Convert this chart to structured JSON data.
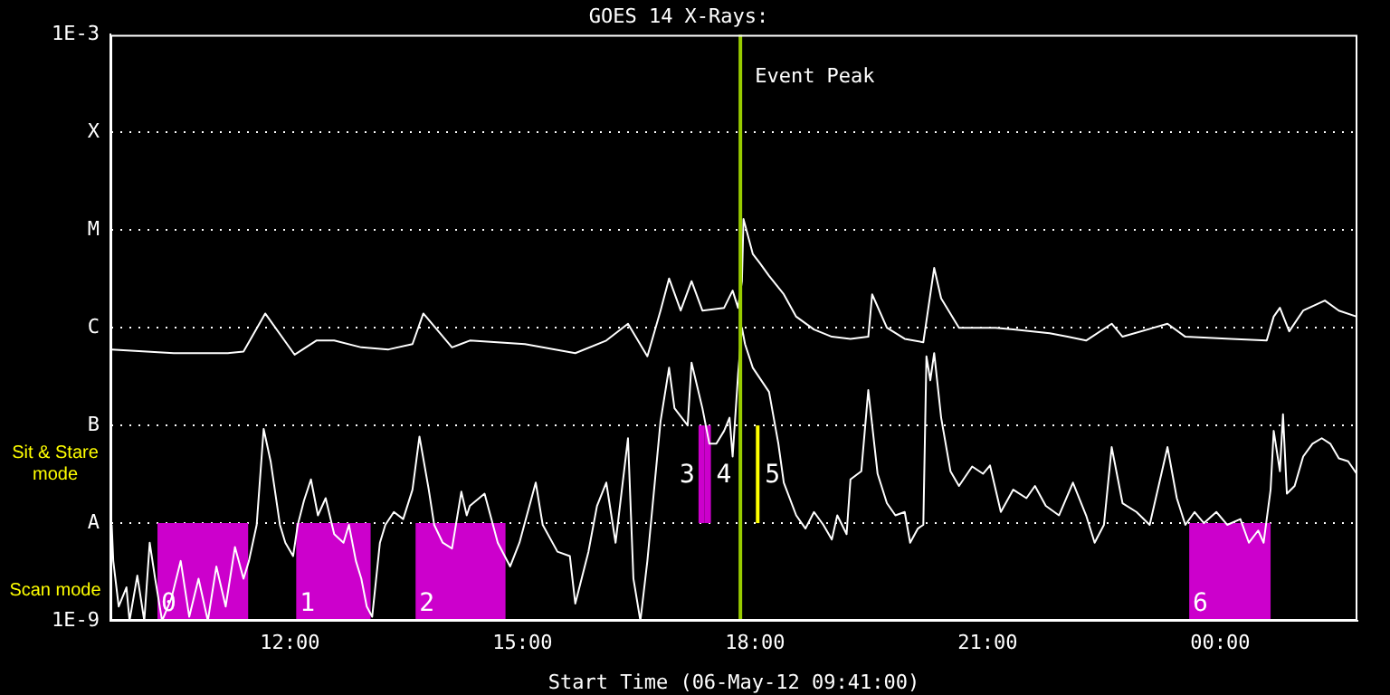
{
  "chart_data": {
    "type": "line",
    "title": "GOES 14 X-Rays:",
    "xlabel": "Start Time (06-May-12 09:41:00)",
    "xlim": [
      9.683,
      25.77
    ],
    "xticks": [
      {
        "value": 12,
        "label": "12:00"
      },
      {
        "value": 15,
        "label": "15:00"
      },
      {
        "value": 18,
        "label": "18:00"
      },
      {
        "value": 21,
        "label": "21:00"
      },
      {
        "value": 24,
        "label": "00:00"
      }
    ],
    "ylim": [
      1e-09,
      0.001
    ],
    "log": true,
    "yticks": [
      {
        "value": 1e-09,
        "label": "1E-9"
      },
      {
        "value": 1e-08,
        "label": "A"
      },
      {
        "value": 1e-07,
        "label": "B"
      },
      {
        "value": 1e-06,
        "label": "C"
      },
      {
        "value": 1e-05,
        "label": "M"
      },
      {
        "value": 0.0001,
        "label": "X"
      },
      {
        "value": 0.001,
        "label": "1E-3"
      }
    ],
    "grid": "y",
    "legend": false,
    "series": [
      {
        "color": "#ffffff",
        "x": [
          9.7,
          10.5,
          11.2,
          11.4,
          11.68,
          12.06,
          12.34,
          12.57,
          12.92,
          13.27,
          13.58,
          13.72,
          14.09,
          14.32,
          15.03,
          15.68,
          16.08,
          16.36,
          16.61,
          16.78,
          16.89,
          17.04,
          17.18,
          17.32,
          17.6,
          17.71,
          17.78,
          17.83,
          17.85,
          17.97,
          18.06,
          18.18,
          18.37,
          18.53,
          18.76,
          18.99,
          19.23,
          19.46,
          19.51,
          19.7,
          19.93,
          20.17,
          20.31,
          20.4,
          20.63,
          20.87,
          21.1,
          21.33,
          21.8,
          22.03,
          22.27,
          22.6,
          22.74,
          23.32,
          23.55,
          24.14,
          24.6,
          24.69,
          24.77,
          24.89,
          25.07,
          25.35,
          25.53,
          25.76
        ],
        "values": [
          6e-07,
          5.5e-07,
          5.5e-07,
          5.7e-07,
          1.4e-06,
          5.3e-07,
          7.4e-07,
          7.4e-07,
          6.3e-07,
          6e-07,
          6.8e-07,
          1.4e-06,
          6.3e-07,
          7.4e-07,
          6.8e-07,
          5.5e-07,
          7.4e-07,
          1.1e-06,
          5.1e-07,
          1.5e-06,
          3.2e-06,
          1.5e-06,
          3e-06,
          1.5e-06,
          1.6e-06,
          2.4e-06,
          1.6e-06,
          3e-06,
          1.3e-05,
          5.7e-06,
          4.6e-06,
          3.4e-06,
          2.2e-06,
          1.3e-06,
          9.6e-07,
          8.1e-07,
          7.7e-07,
          8.1e-07,
          2.2e-06,
          1e-06,
          7.7e-07,
          7.1e-07,
          4.1e-06,
          2e-06,
          1e-06,
          1e-06,
          1e-06,
          9.6e-07,
          8.8e-07,
          8.1e-07,
          7.4e-07,
          1.1e-06,
          8.1e-07,
          1.1e-06,
          8.1e-07,
          7.7e-07,
          7.4e-07,
          1.3e-06,
          1.6e-06,
          9.2e-07,
          1.5e-06,
          1.9e-06,
          1.5e-06,
          1.3e-06
        ]
      },
      {
        "color": "#ffffff",
        "x": [
          9.7,
          9.72,
          9.79,
          9.89,
          9.93,
          10.03,
          10.12,
          10.19,
          10.26,
          10.35,
          10.47,
          10.59,
          10.7,
          10.82,
          10.94,
          11.05,
          11.17,
          11.29,
          11.4,
          11.47,
          11.57,
          11.66,
          11.75,
          11.87,
          11.94,
          12.04,
          12.1,
          12.18,
          12.27,
          12.36,
          12.46,
          12.57,
          12.69,
          12.76,
          12.85,
          12.92,
          12.99,
          13.06,
          13.16,
          13.23,
          13.34,
          13.46,
          13.58,
          13.67,
          13.79,
          13.86,
          13.97,
          14.09,
          14.21,
          14.28,
          14.32,
          14.51,
          14.68,
          14.84,
          14.96,
          15.17,
          15.26,
          15.45,
          15.61,
          15.68,
          15.85,
          15.96,
          16.08,
          16.2,
          16.36,
          16.43,
          16.52,
          16.61,
          16.78,
          16.89,
          16.96,
          17.13,
          17.18,
          17.32,
          17.41,
          17.5,
          17.6,
          17.67,
          17.71,
          17.78,
          17.83,
          17.87,
          17.97,
          18.18,
          18.3,
          18.37,
          18.53,
          18.65,
          18.76,
          18.88,
          18.99,
          19.06,
          19.18,
          19.23,
          19.37,
          19.46,
          19.58,
          19.7,
          19.81,
          19.93,
          20.0,
          20.1,
          20.17,
          20.21,
          20.26,
          20.31,
          20.4,
          20.52,
          20.63,
          20.8,
          20.94,
          21.03,
          21.17,
          21.33,
          21.5,
          21.61,
          21.75,
          21.92,
          22.1,
          22.27,
          22.38,
          22.5,
          22.6,
          22.74,
          22.92,
          23.09,
          23.32,
          23.44,
          23.55,
          23.67,
          23.79,
          23.95,
          24.09,
          24.26,
          24.37,
          24.49,
          24.56,
          24.65,
          24.69,
          24.77,
          24.81,
          24.86,
          24.96,
          25.07,
          25.19,
          25.31,
          25.42,
          25.53,
          25.65,
          25.76
        ],
        "values": [
          9.6e-09,
          4.1e-09,
          1.4e-09,
          2.2e-09,
          1e-09,
          2.9e-09,
          1e-09,
          6.3e-09,
          2.7e-09,
          1e-09,
          1.7e-09,
          4.1e-09,
          1.1e-09,
          2.7e-09,
          1e-09,
          3.6e-09,
          1.4e-09,
          5.7e-09,
          2.7e-09,
          4.1e-09,
          9.6e-09,
          9.2e-08,
          4.3e-08,
          9.6e-09,
          6.3e-09,
          4.6e-09,
          9.6e-09,
          1.7e-08,
          2.8e-08,
          1.2e-08,
          1.8e-08,
          7.7e-09,
          6.3e-09,
          9.6e-09,
          4.1e-09,
          2.7e-09,
          1.4e-09,
          1.1e-09,
          6.3e-09,
          9.6e-09,
          1.3e-08,
          1.1e-08,
          2.2e-08,
          7.7e-08,
          2.2e-08,
          9.6e-09,
          6.3e-09,
          5.5e-09,
          2.1e-08,
          1.2e-08,
          1.5e-08,
          2e-08,
          6.3e-09,
          3.6e-09,
          6.3e-09,
          2.6e-08,
          9.6e-09,
          5.1e-09,
          4.6e-09,
          1.5e-09,
          5.1e-09,
          1.5e-08,
          2.6e-08,
          6.3e-09,
          7.4e-08,
          2.7e-09,
          1e-09,
          4.1e-09,
          1.1e-07,
          3.9e-07,
          1.5e-07,
          1e-07,
          4.4e-07,
          1.5e-07,
          6.5e-08,
          6.5e-08,
          8.8e-08,
          1.2e-07,
          4.8e-08,
          3.3e-07,
          1e-06,
          6.8e-07,
          3.9e-07,
          2.2e-07,
          6.5e-08,
          2.6e-08,
          1.2e-08,
          8.8e-09,
          1.3e-08,
          9.6e-09,
          6.8e-09,
          1.2e-08,
          7.7e-09,
          2.8e-08,
          3.4e-08,
          2.3e-07,
          3.2e-08,
          1.6e-08,
          1.2e-08,
          1.3e-08,
          6.3e-09,
          8.8e-09,
          9.6e-09,
          5.1e-07,
          2.9e-07,
          5.5e-07,
          1.2e-07,
          3.4e-08,
          2.4e-08,
          3.8e-08,
          3.2e-08,
          3.9e-08,
          1.3e-08,
          2.2e-08,
          1.8e-08,
          2.4e-08,
          1.5e-08,
          1.2e-08,
          2.6e-08,
          1.2e-08,
          6.3e-09,
          9.6e-09,
          6e-08,
          1.6e-08,
          1.3e-08,
          9.6e-09,
          6e-08,
          1.8e-08,
          9.6e-09,
          1.3e-08,
          1e-08,
          1.3e-08,
          9.6e-09,
          1.1e-08,
          6.3e-09,
          8.4e-09,
          6.3e-09,
          2.2e-08,
          8.8e-08,
          3.4e-08,
          1.3e-07,
          2e-08,
          2.4e-08,
          4.8e-08,
          6.5e-08,
          7.4e-08,
          6.5e-08,
          4.6e-08,
          4.3e-08,
          3.2e-08
        ]
      }
    ],
    "bands": [
      {
        "axis": "x",
        "from": 10.29,
        "to": 11.46,
        "label": "0",
        "color": "#cc00cc"
      },
      {
        "axis": "x",
        "from": 12.08,
        "to": 13.04,
        "label": "1",
        "color": "#cc00cc"
      },
      {
        "axis": "x",
        "from": 13.62,
        "to": 14.78,
        "label": "2",
        "color": "#cc00cc"
      },
      {
        "axis": "x",
        "from": 23.6,
        "to": 24.65,
        "label": "6",
        "color": "#cc00cc"
      },
      {
        "axis": "x",
        "from": 17.27,
        "to": 17.35,
        "label": "3",
        "color": "#cc00cc"
      },
      {
        "axis": "x",
        "from": 17.35,
        "to": 17.43,
        "label": "4",
        "color": "#cc00cc"
      },
      {
        "axis": "x",
        "from": 18.01,
        "to": 18.03,
        "label": "5",
        "color": "#ffff00"
      }
    ],
    "ref_lines": [
      {
        "axis": "x",
        "value": 17.81,
        "label": "Event Peak",
        "color": "#99cc00"
      }
    ],
    "annotations": [
      "Sit & Stare mode",
      "Scan mode"
    ]
  }
}
